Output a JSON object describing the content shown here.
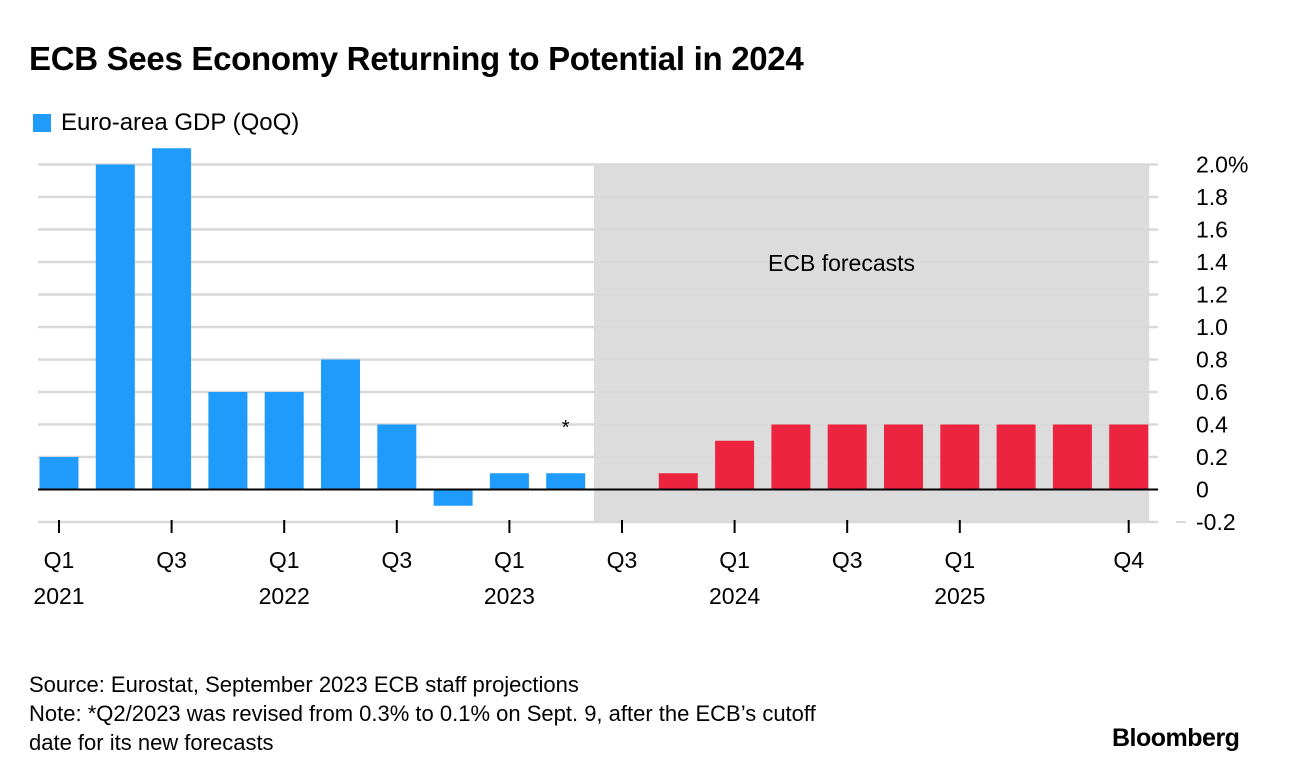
{
  "colors": {
    "actual": "#1e9bfb",
    "forecast": "#ec2440",
    "forecast_band": "#dcdcdc",
    "grid": "#d9d9d9"
  },
  "chart_data": {
    "type": "bar",
    "title": "ECB Sees Economy Returning to Potential in 2024",
    "legend": [
      "Euro-area GDP (QoQ)"
    ],
    "legend_placement": "top-left",
    "categories": [
      "Q1 2021",
      "Q2 2021",
      "Q3 2021",
      "Q4 2021",
      "Q1 2022",
      "Q2 2022",
      "Q3 2022",
      "Q4 2022",
      "Q1 2023",
      "Q2 2023",
      "Q3 2023",
      "Q4 2023",
      "Q1 2024",
      "Q2 2024",
      "Q3 2024",
      "Q4 2024",
      "Q1 2025",
      "Q2 2025",
      "Q3 2025",
      "Q4 2025"
    ],
    "series": [
      {
        "name": "Euro-area GDP (QoQ)",
        "values": [
          0.2,
          2.0,
          2.1,
          0.6,
          0.6,
          0.8,
          0.4,
          -0.1,
          0.1,
          0.1,
          null,
          null,
          null,
          null,
          null,
          null,
          null,
          null,
          null,
          null
        ]
      },
      {
        "values": [
          null,
          null,
          null,
          null,
          null,
          null,
          null,
          null,
          null,
          null,
          0.0,
          0.1,
          0.3,
          0.4,
          0.4,
          0.4,
          0.4,
          0.4,
          0.4,
          0.4
        ]
      }
    ],
    "ylim": [
      -0.2,
      2.0
    ],
    "y_ticks": [
      "-0.2",
      "0",
      "0.2",
      "0.4",
      "0.6",
      "0.8",
      "1.0",
      "1.2",
      "1.4",
      "1.6",
      "1.8",
      "2.0%"
    ],
    "x_tick_labels": [
      {
        "q": "Q1",
        "year": "2021",
        "index": 0
      },
      {
        "q": "Q3",
        "year": "",
        "index": 2
      },
      {
        "q": "Q1",
        "year": "2022",
        "index": 4
      },
      {
        "q": "Q3",
        "year": "",
        "index": 6
      },
      {
        "q": "Q1",
        "year": "2023",
        "index": 8
      },
      {
        "q": "Q3",
        "year": "",
        "index": 10
      },
      {
        "q": "Q1",
        "year": "2024",
        "index": 12
      },
      {
        "q": "Q3",
        "year": "",
        "index": 14
      },
      {
        "q": "Q1",
        "year": "2025",
        "index": 16
      },
      {
        "q": "Q4",
        "year": "",
        "index": 19
      }
    ],
    "forecast_band": {
      "start_index": 10,
      "end_index": 19,
      "label": "ECB forecasts"
    },
    "annotation": {
      "text": "*",
      "index": 9
    },
    "grid": true,
    "y_axis_side": "right"
  },
  "footer": {
    "source": "Source: Eurostat, September 2023 ECB staff projections",
    "note_line1": "Note: *Q2/2023 was revised from 0.3% to 0.1% on Sept. 9, after the ECB’s cutoff",
    "note_line2": "date for its new forecasts"
  },
  "logo": "Bloomberg"
}
